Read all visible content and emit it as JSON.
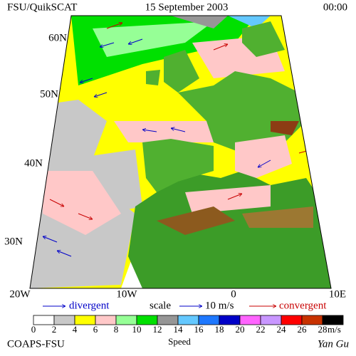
{
  "header": {
    "left": "FSU/QuikSCAT",
    "date": "15 September 2003",
    "time": "00:00"
  },
  "latitude_labels": [
    "60N",
    "50N",
    "40N",
    "30N"
  ],
  "longitude_labels": [
    "20W",
    "10W",
    "0",
    "10E"
  ],
  "legend": {
    "divergent": "divergent",
    "scale": "scale",
    "scale_value": "10 m/s",
    "convergent": "convergent"
  },
  "colorbar": {
    "ticks": [
      0,
      2,
      4,
      6,
      8,
      10,
      12,
      14,
      16,
      18,
      20,
      22,
      24,
      26,
      28
    ],
    "colors": [
      "#ffffff",
      "#c8c8c8",
      "#ffff00",
      "#ffc8c8",
      "#96ff96",
      "#00e000",
      "#969696",
      "#64c8ff",
      "#1e78ff",
      "#0000c8",
      "#ff64ff",
      "#c896ff",
      "#ff0000",
      "#c83200",
      "#000000"
    ],
    "unit": "m/s",
    "label": "Speed"
  },
  "footer": {
    "left": "COAPS-FSU",
    "right": "Yan Gu"
  }
}
